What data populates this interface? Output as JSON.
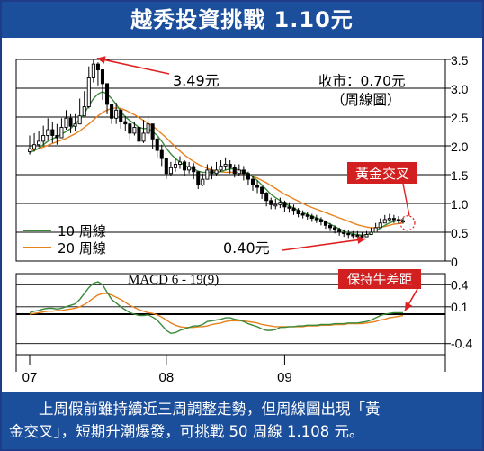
{
  "title": "越秀投資挑戰 1.10元",
  "caption": {
    "line1": "　　上周假前雖持續近三周調整走勢，但周線圖出現「黃",
    "line2": "金交叉」，短期升潮爆發，可挑戰 50 周線 1.108 元。"
  },
  "colors": {
    "header_bg": "#1b4e9b",
    "ma10": "#3a8a3a",
    "ma20": "#e8821e",
    "arrow": "#e02020",
    "badge_bg": "#d21f1f",
    "candle": "#000000"
  },
  "chart_data": [
    {
      "type": "candlestick",
      "panel": "price",
      "x_tick_labels": [
        "07",
        "08",
        "09"
      ],
      "x_tick_positions": [
        0,
        30,
        56
      ],
      "ylim": [
        0,
        3.5
      ],
      "y_ticks": [
        "3.5",
        "3.0",
        "2.5",
        "2.0",
        "1.5",
        "1.0",
        "0.5",
        "0"
      ],
      "y_tick_values": [
        3.5,
        3.0,
        2.5,
        2.0,
        1.5,
        1.0,
        0.5,
        0
      ],
      "grid": true,
      "annotations": {
        "high": "3.49元",
        "low": "0.40元",
        "close_note_1": "收市：0.70元",
        "close_note_2": "（周線圖）",
        "golden_cross": "黃金交叉"
      },
      "legend": [
        {
          "label": "10 周線",
          "series": "ma10"
        },
        {
          "label": "20 周線",
          "series": "ma20"
        }
      ],
      "legend_position": "bottom-left",
      "close": [
        1.95,
        2.02,
        2.08,
        2.18,
        2.28,
        2.18,
        2.14,
        2.32,
        2.48,
        2.34,
        2.38,
        2.52,
        2.68,
        3.18,
        3.42,
        3.32,
        3.08,
        2.72,
        2.48,
        2.62,
        2.42,
        2.38,
        2.22,
        2.32,
        2.08,
        2.22,
        2.38,
        2.12,
        1.92,
        1.78,
        1.52,
        1.62,
        1.68,
        1.72,
        1.58,
        1.64,
        1.55,
        1.32,
        1.42,
        1.58,
        1.52,
        1.58,
        1.65,
        1.68,
        1.62,
        1.52,
        1.58,
        1.52,
        1.42,
        1.32,
        1.28,
        1.18,
        1.05,
        0.98,
        0.98,
        1.02,
        0.94,
        0.92,
        0.88,
        0.82,
        0.8,
        0.78,
        0.74,
        0.72,
        0.68,
        0.62,
        0.58,
        0.55,
        0.5,
        0.48,
        0.46,
        0.45,
        0.44,
        0.42,
        0.46,
        0.5,
        0.58,
        0.66,
        0.72,
        0.74,
        0.72,
        0.7,
        0.7
      ],
      "high": [
        2.18,
        2.22,
        2.25,
        2.35,
        2.48,
        2.42,
        2.38,
        2.48,
        2.62,
        2.55,
        2.55,
        2.82,
        2.95,
        3.38,
        3.49,
        3.45,
        3.22,
        3.0,
        2.72,
        2.75,
        2.65,
        2.52,
        2.45,
        2.42,
        2.35,
        2.45,
        2.52,
        2.35,
        2.15,
        2.02,
        1.78,
        1.72,
        1.78,
        1.82,
        1.75,
        1.72,
        1.7,
        1.55,
        1.52,
        1.68,
        1.65,
        1.72,
        1.75,
        1.8,
        1.75,
        1.68,
        1.68,
        1.65,
        1.55,
        1.48,
        1.4,
        1.3,
        1.2,
        1.1,
        1.08,
        1.1,
        1.05,
        1.02,
        0.98,
        0.92,
        0.88,
        0.85,
        0.82,
        0.8,
        0.76,
        0.7,
        0.66,
        0.62,
        0.58,
        0.55,
        0.54,
        0.52,
        0.52,
        0.5,
        0.52,
        0.58,
        0.66,
        0.74,
        0.8,
        0.82,
        0.8,
        0.78,
        0.75
      ],
      "low": [
        1.85,
        1.9,
        1.98,
        2.02,
        2.1,
        2.05,
        2.02,
        2.15,
        2.28,
        2.22,
        2.25,
        2.4,
        2.55,
        2.65,
        3.1,
        3.05,
        2.8,
        2.55,
        2.38,
        2.38,
        2.3,
        2.25,
        2.1,
        2.18,
        1.95,
        2.05,
        2.18,
        1.95,
        1.8,
        1.65,
        1.42,
        1.48,
        1.55,
        1.6,
        1.48,
        1.52,
        1.42,
        1.25,
        1.3,
        1.45,
        1.42,
        1.48,
        1.55,
        1.58,
        1.52,
        1.45,
        1.48,
        1.4,
        1.32,
        1.22,
        1.18,
        1.08,
        0.95,
        0.9,
        0.9,
        0.92,
        0.86,
        0.84,
        0.8,
        0.76,
        0.74,
        0.72,
        0.68,
        0.66,
        0.62,
        0.56,
        0.52,
        0.48,
        0.44,
        0.42,
        0.4,
        0.4,
        0.4,
        0.4,
        0.42,
        0.46,
        0.52,
        0.6,
        0.66,
        0.68,
        0.66,
        0.65,
        0.65
      ],
      "ma10": [
        1.88,
        1.92,
        1.96,
        2.02,
        2.08,
        2.12,
        2.16,
        2.2,
        2.25,
        2.3,
        2.38,
        2.46,
        2.56,
        2.7,
        2.82,
        2.9,
        2.94,
        2.9,
        2.82,
        2.72,
        2.6,
        2.5,
        2.44,
        2.38,
        2.32,
        2.3,
        2.3,
        2.25,
        2.18,
        2.08,
        1.96,
        1.86,
        1.78,
        1.72,
        1.66,
        1.62,
        1.6,
        1.56,
        1.54,
        1.54,
        1.54,
        1.54,
        1.55,
        1.58,
        1.6,
        1.6,
        1.58,
        1.56,
        1.52,
        1.46,
        1.4,
        1.32,
        1.24,
        1.16,
        1.1,
        1.05,
        1.0,
        0.96,
        0.92,
        0.88,
        0.84,
        0.81,
        0.78,
        0.75,
        0.72,
        0.68,
        0.64,
        0.6,
        0.56,
        0.52,
        0.49,
        0.47,
        0.46,
        0.45,
        0.46,
        0.48,
        0.52,
        0.57,
        0.62,
        0.66,
        0.69,
        0.7,
        0.71
      ],
      "ma20": [
        1.92,
        1.93,
        1.95,
        1.98,
        2.01,
        2.04,
        2.07,
        2.1,
        2.13,
        2.17,
        2.21,
        2.26,
        2.32,
        2.38,
        2.45,
        2.52,
        2.58,
        2.62,
        2.65,
        2.66,
        2.65,
        2.62,
        2.58,
        2.54,
        2.49,
        2.44,
        2.39,
        2.34,
        2.28,
        2.21,
        2.14,
        2.06,
        1.98,
        1.91,
        1.84,
        1.78,
        1.73,
        1.68,
        1.64,
        1.61,
        1.58,
        1.56,
        1.55,
        1.54,
        1.54,
        1.54,
        1.53,
        1.52,
        1.5,
        1.47,
        1.44,
        1.4,
        1.36,
        1.31,
        1.26,
        1.21,
        1.16,
        1.12,
        1.08,
        1.04,
        1.0,
        0.96,
        0.93,
        0.9,
        0.87,
        0.84,
        0.81,
        0.78,
        0.75,
        0.72,
        0.69,
        0.66,
        0.63,
        0.61,
        0.59,
        0.58,
        0.58,
        0.59,
        0.6,
        0.62,
        0.64,
        0.65,
        0.66
      ]
    },
    {
      "type": "line",
      "panel": "macd",
      "title": "MACD 6 - 19(9)",
      "ylim": [
        -0.55,
        0.55
      ],
      "y_ticks": [
        "0.4",
        "0.1",
        "-0.4"
      ],
      "y_tick_values": [
        0.4,
        0.1,
        -0.4
      ],
      "annotations": {
        "badge": "保持牛差距"
      },
      "series": [
        {
          "color_key": "ma10",
          "values": [
            0.02,
            0.04,
            0.05,
            0.07,
            0.08,
            0.08,
            0.07,
            0.08,
            0.1,
            0.12,
            0.14,
            0.2,
            0.28,
            0.36,
            0.42,
            0.44,
            0.4,
            0.3,
            0.2,
            0.15,
            0.1,
            0.06,
            0.02,
            0.0,
            -0.02,
            -0.02,
            -0.01,
            -0.04,
            -0.08,
            -0.15,
            -0.22,
            -0.26,
            -0.25,
            -0.22,
            -0.2,
            -0.18,
            -0.16,
            -0.16,
            -0.14,
            -0.1,
            -0.09,
            -0.08,
            -0.07,
            -0.05,
            -0.05,
            -0.07,
            -0.08,
            -0.1,
            -0.13,
            -0.15,
            -0.17,
            -0.2,
            -0.22,
            -0.22,
            -0.21,
            -0.18,
            -0.18,
            -0.17,
            -0.17,
            -0.16,
            -0.16,
            -0.15,
            -0.15,
            -0.15,
            -0.14,
            -0.14,
            -0.14,
            -0.13,
            -0.13,
            -0.13,
            -0.12,
            -0.12,
            -0.12,
            -0.11,
            -0.1,
            -0.08,
            -0.05,
            -0.02,
            0.0,
            0.01,
            0.02,
            0.02,
            0.02
          ]
        },
        {
          "color_key": "ma20",
          "values": [
            0.0,
            0.01,
            0.02,
            0.03,
            0.04,
            0.04,
            0.05,
            0.05,
            0.06,
            0.07,
            0.08,
            0.1,
            0.13,
            0.17,
            0.22,
            0.26,
            0.28,
            0.28,
            0.26,
            0.23,
            0.2,
            0.16,
            0.12,
            0.09,
            0.06,
            0.04,
            0.02,
            0.01,
            -0.01,
            -0.04,
            -0.08,
            -0.12,
            -0.15,
            -0.17,
            -0.18,
            -0.18,
            -0.18,
            -0.17,
            -0.17,
            -0.16,
            -0.14,
            -0.13,
            -0.12,
            -0.1,
            -0.09,
            -0.09,
            -0.09,
            -0.09,
            -0.1,
            -0.11,
            -0.12,
            -0.14,
            -0.15,
            -0.16,
            -0.17,
            -0.17,
            -0.17,
            -0.17,
            -0.17,
            -0.17,
            -0.17,
            -0.16,
            -0.16,
            -0.16,
            -0.15,
            -0.15,
            -0.15,
            -0.14,
            -0.14,
            -0.14,
            -0.13,
            -0.13,
            -0.13,
            -0.13,
            -0.12,
            -0.11,
            -0.1,
            -0.08,
            -0.07,
            -0.05,
            -0.04,
            -0.03,
            -0.02
          ]
        }
      ]
    }
  ]
}
